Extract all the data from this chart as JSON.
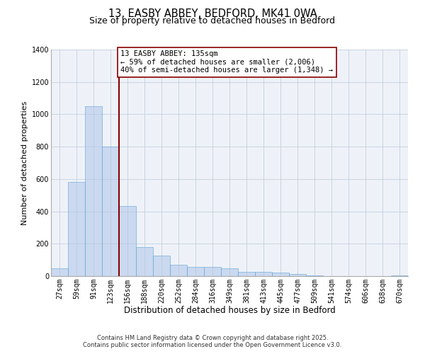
{
  "title1": "13, EASBY ABBEY, BEDFORD, MK41 0WA",
  "title2": "Size of property relative to detached houses in Bedford",
  "xlabel": "Distribution of detached houses by size in Bedford",
  "ylabel": "Number of detached properties",
  "categories": [
    "27sqm",
    "59sqm",
    "91sqm",
    "123sqm",
    "156sqm",
    "188sqm",
    "220sqm",
    "252sqm",
    "284sqm",
    "316sqm",
    "349sqm",
    "381sqm",
    "413sqm",
    "445sqm",
    "477sqm",
    "509sqm",
    "541sqm",
    "574sqm",
    "606sqm",
    "638sqm",
    "670sqm"
  ],
  "values": [
    50,
    580,
    1048,
    800,
    435,
    180,
    125,
    70,
    55,
    55,
    50,
    28,
    25,
    20,
    15,
    5,
    2,
    2,
    1,
    1,
    3
  ],
  "bar_color": "#aec6e8",
  "bar_edge_color": "#5a9fd4",
  "vline_x_idx": 3.5,
  "vline_color": "#880000",
  "annotation_title": "13 EASBY ABBEY: 135sqm",
  "annotation_line1": "← 59% of detached houses are smaller (2,006)",
  "annotation_line2": "40% of semi-detached houses are larger (1,348) →",
  "ylim": [
    0,
    1400
  ],
  "yticks": [
    0,
    200,
    400,
    600,
    800,
    1000,
    1200,
    1400
  ],
  "bg_color": "#eef2f8",
  "footer1": "Contains HM Land Registry data © Crown copyright and database right 2025.",
  "footer2": "Contains public sector information licensed under the Open Government Licence v3.0.",
  "title_fontsize": 10.5,
  "subtitle_fontsize": 9,
  "xlabel_fontsize": 8.5,
  "ylabel_fontsize": 8,
  "tick_fontsize": 7,
  "annotation_fontsize": 7.5,
  "footer_fontsize": 6
}
